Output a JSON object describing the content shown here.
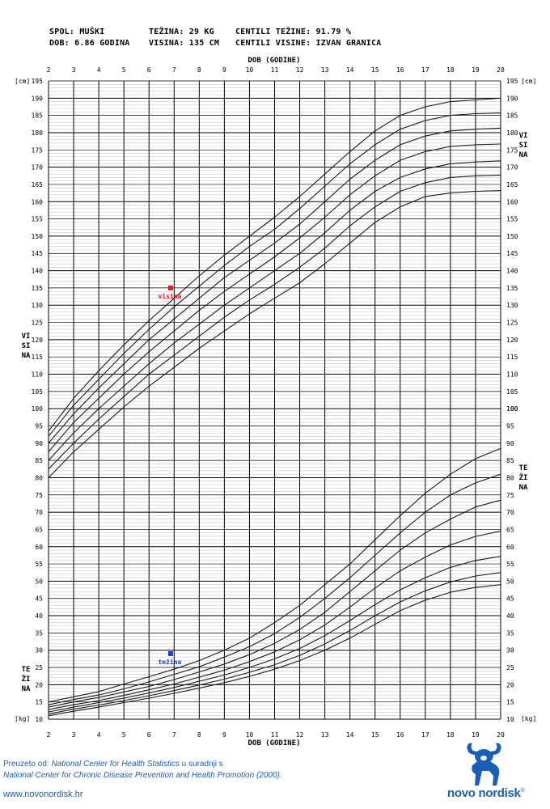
{
  "header": {
    "sex": "SPOL: MUŠKI",
    "age": "DOB: 6.86 GODINA",
    "weight": "TEŽINA: 29 KG",
    "height": "VISINA: 135 CM",
    "weight_percentile": "CENTILI TEŽINE: 91.79 %",
    "height_percentile": "CENTILI VISINE: IZVAN GRANICA"
  },
  "labels": {
    "height_side": "VISINA",
    "weight_side": "TEŽINA",
    "unit_cm": "[cm]",
    "unit_kg": "[kg]"
  },
  "footer": {
    "source_prefix": "Preuzeto od: ",
    "source_org": "National Center for Health Statistics",
    "source_mid": " u suradnji s",
    "source_line2": "National Center for Chronic Disease Prevention and Health Promotion (2000).",
    "url": "www.novonordisk.hr",
    "brand": "novo nordisk",
    "brand_mark": "®"
  },
  "chart_data": {
    "type": "line",
    "xlabel": "DOB (GODINE)",
    "xlim": [
      2,
      20
    ],
    "x_ticks": [
      2,
      3,
      4,
      5,
      6,
      7,
      8,
      9,
      10,
      11,
      12,
      13,
      14,
      15,
      16,
      17,
      18,
      19,
      20
    ],
    "left_axis": {
      "unit": "[cm]",
      "ylim": [
        10,
        195
      ],
      "ticks": [
        10,
        15,
        20,
        25,
        30,
        35,
        40,
        45,
        50,
        55,
        60,
        65,
        70,
        75,
        80,
        85,
        90,
        95,
        100,
        105,
        110,
        115,
        120,
        125,
        130,
        135,
        140,
        145,
        150,
        155,
        160,
        165,
        170,
        175,
        180,
        185,
        190,
        195
      ]
    },
    "right_axis": {
      "height_ticks": [
        100,
        105,
        110,
        115,
        120,
        125,
        130,
        135,
        140,
        145,
        150,
        155,
        160,
        165,
        170,
        175,
        180,
        185,
        190,
        195
      ],
      "weight_ticks": [
        10,
        15,
        20,
        25,
        30,
        35,
        40,
        45,
        50,
        55,
        60,
        65,
        70,
        75,
        80,
        85,
        90,
        95,
        100
      ]
    },
    "x": [
      2,
      3,
      4,
      5,
      6,
      7,
      8,
      9,
      10,
      11,
      12,
      13,
      14,
      15,
      16,
      17,
      18,
      19,
      20
    ],
    "height_series": [
      {
        "values": [
          80,
          87.5,
          94,
          100.5,
          106.5,
          112,
          117.5,
          122.5,
          127.5,
          132,
          136.5,
          142,
          148,
          154,
          158.5,
          161.5,
          162.5,
          163,
          163.2
        ]
      },
      {
        "values": [
          82.5,
          90,
          97,
          103.5,
          110,
          115.5,
          121,
          126.5,
          131.5,
          136,
          141,
          146.5,
          153,
          158.5,
          163,
          165.5,
          167,
          167.5,
          167.7
        ]
      },
      {
        "values": [
          85,
          93,
          100,
          106.5,
          113,
          119,
          124.5,
          130,
          135,
          140,
          145,
          151,
          157.5,
          163,
          167,
          169.5,
          171,
          171.5,
          171.8
        ]
      },
      {
        "values": [
          87.5,
          96,
          103,
          110,
          116.5,
          122.5,
          128.5,
          134,
          139,
          144,
          149.5,
          155.5,
          162,
          167.5,
          172,
          174.5,
          176,
          176.5,
          176.7
        ]
      },
      {
        "values": [
          90,
          98.5,
          106,
          113,
          120,
          126,
          132,
          138,
          143,
          148,
          153.5,
          160,
          166.5,
          172,
          176.5,
          179,
          180.5,
          181,
          181.3
        ]
      },
      {
        "values": [
          92,
          101,
          108.5,
          116,
          123,
          129.5,
          135.5,
          141.5,
          147,
          152,
          158,
          164.5,
          171,
          176.5,
          181,
          183.5,
          185,
          185.5,
          185.7
        ]
      },
      {
        "values": [
          93.5,
          103,
          111,
          118.5,
          125.5,
          132,
          138.5,
          144.5,
          150,
          155.5,
          161.5,
          168,
          174.5,
          180.5,
          185,
          187.5,
          189,
          189.5,
          190
        ]
      }
    ],
    "weight_series": [
      {
        "values": [
          15,
          16.5,
          18,
          20.2,
          22.3,
          24.5,
          27,
          30,
          33.5,
          38,
          43,
          49,
          55,
          62,
          69,
          75.5,
          81,
          85.5,
          88.5
        ]
      },
      {
        "values": [
          14.2,
          15.7,
          17,
          18.8,
          20.8,
          23,
          25.2,
          28,
          31,
          34.8,
          39.5,
          45,
          51,
          57.5,
          64,
          70,
          75,
          78.5,
          81
        ]
      },
      {
        "values": [
          13.5,
          15,
          16.3,
          17.9,
          19.5,
          21.5,
          23.7,
          26,
          28.7,
          32,
          36,
          41,
          47,
          53,
          59,
          64,
          68,
          71.5,
          73.5
        ]
      },
      {
        "values": [
          12.8,
          14.2,
          15.4,
          16.9,
          18.5,
          20.2,
          22.2,
          24.2,
          26.7,
          29.5,
          33,
          37.3,
          42.5,
          48,
          53,
          57,
          60.5,
          63,
          64.5
        ]
      },
      {
        "values": [
          12.1,
          13.5,
          14.8,
          16.1,
          17.6,
          19.2,
          21,
          22.8,
          25,
          27.5,
          30.5,
          34.2,
          38.6,
          43.2,
          47.5,
          51,
          54,
          56,
          57.2
        ]
      },
      {
        "values": [
          11.5,
          12.9,
          14.1,
          15.4,
          16.8,
          18.3,
          19.9,
          21.6,
          23.6,
          25.8,
          28.5,
          31.8,
          35.7,
          40,
          44,
          47.2,
          49.8,
          51.5,
          52.5
        ]
      },
      {
        "values": [
          11,
          12.3,
          13.5,
          14.8,
          16.1,
          17.5,
          19,
          20.6,
          22.4,
          24.5,
          27,
          30,
          33.5,
          37.5,
          41.5,
          44.5,
          46.8,
          48.2,
          49
        ]
      }
    ],
    "markers": [
      {
        "label": "visina",
        "age": 6.86,
        "value": 135,
        "color": "#e01b24"
      },
      {
        "label": "težina",
        "age": 6.86,
        "value": 29,
        "color": "#1c3fd1"
      }
    ]
  }
}
